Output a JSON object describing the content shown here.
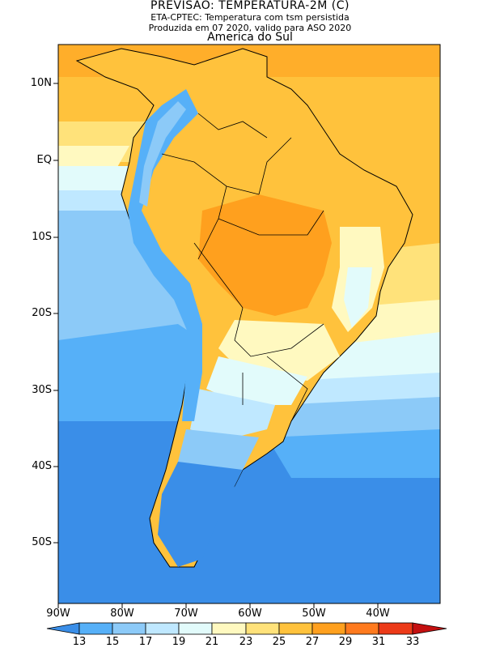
{
  "title": {
    "line1": "PREVISAO: TEMPERATURA-2M (C)",
    "line2": "ETA-CPTEC: Temperatura com tsm persistida",
    "line3": "Produzida em 07 2020, valido para ASO 2020",
    "line4": "America do Sul"
  },
  "axes": {
    "y_labels": [
      "10N",
      "EQ",
      "10S",
      "20S",
      "30S",
      "40S",
      "50S"
    ],
    "x_labels": [
      "90W",
      "80W",
      "70W",
      "60W",
      "50W",
      "40W"
    ],
    "lat_range": [
      -58,
      15
    ],
    "lon_range": [
      -90,
      -30
    ]
  },
  "colorbar": {
    "values": [
      "13",
      "15",
      "17",
      "19",
      "21",
      "23",
      "25",
      "27",
      "29",
      "31",
      "33"
    ],
    "colors": [
      "#3a8ee8",
      "#56b0f8",
      "#8ccaf8",
      "#bfe8ff",
      "#e2fbfb",
      "#fff9c0",
      "#ffe27a",
      "#ffc23c",
      "#ffa01e",
      "#ff7a1e",
      "#ec3a18",
      "#c41010"
    ]
  },
  "palette": {
    "ocean_warm": "#ffc23c",
    "deep_cold": "#3a8ee8"
  }
}
